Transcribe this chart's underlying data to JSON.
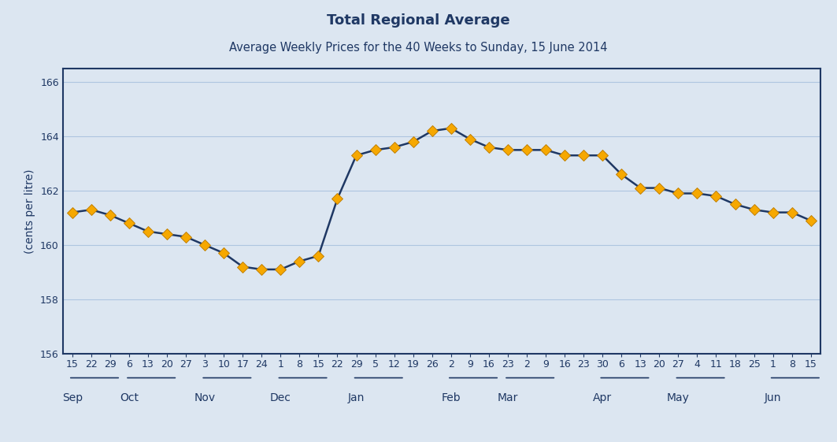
{
  "title": "Total Regional Average",
  "subtitle": "Average Weekly Prices for the 40 Weeks to Sunday, 15 June 2014",
  "ylabel": "(cents per litre)",
  "ylim": [
    156,
    166.5
  ],
  "yticks": [
    156,
    158,
    160,
    162,
    164,
    166
  ],
  "line_color": "#1f3864",
  "marker_color": "#f6a800",
  "marker_edge_color": "#c17f00",
  "background_color": "#dce6f1",
  "plot_bg_color": "#dce6f1",
  "border_color": "#1f3864",
  "grid_color": "#aec5e0",
  "x_day_labels": [
    "15",
    "22",
    "29",
    "6",
    "13",
    "20",
    "27",
    "3",
    "10",
    "17",
    "24",
    "1",
    "8",
    "15",
    "22",
    "29",
    "5",
    "12",
    "19",
    "26",
    "2",
    "9",
    "16",
    "23",
    "2",
    "9",
    "16",
    "23",
    "30",
    "6",
    "13",
    "20",
    "27",
    "4",
    "11",
    "18",
    "25",
    "1",
    "8",
    "15"
  ],
  "x_month_labels": [
    "Sep",
    "Oct",
    "Nov",
    "Dec",
    "Jan",
    "Feb",
    "Mar",
    "Apr",
    "May",
    "Jun"
  ],
  "x_month_positions": [
    0,
    3,
    7,
    11,
    15,
    20,
    23,
    28,
    32,
    37
  ],
  "values": [
    161.2,
    161.3,
    161.1,
    160.8,
    160.5,
    160.4,
    160.3,
    160.0,
    159.7,
    159.2,
    159.1,
    159.1,
    159.4,
    159.6,
    161.7,
    163.3,
    163.5,
    163.6,
    163.8,
    164.2,
    164.3,
    163.9,
    163.6,
    163.5,
    163.5,
    163.5,
    163.3,
    163.3,
    163.3,
    162.6,
    162.1,
    162.1,
    161.9,
    161.9,
    161.8,
    161.5,
    161.3,
    161.2,
    161.2,
    160.9
  ],
  "title_fontsize": 13,
  "subtitle_fontsize": 10.5,
  "tick_label_fontsize": 9,
  "month_label_fontsize": 10,
  "ylabel_fontsize": 10
}
